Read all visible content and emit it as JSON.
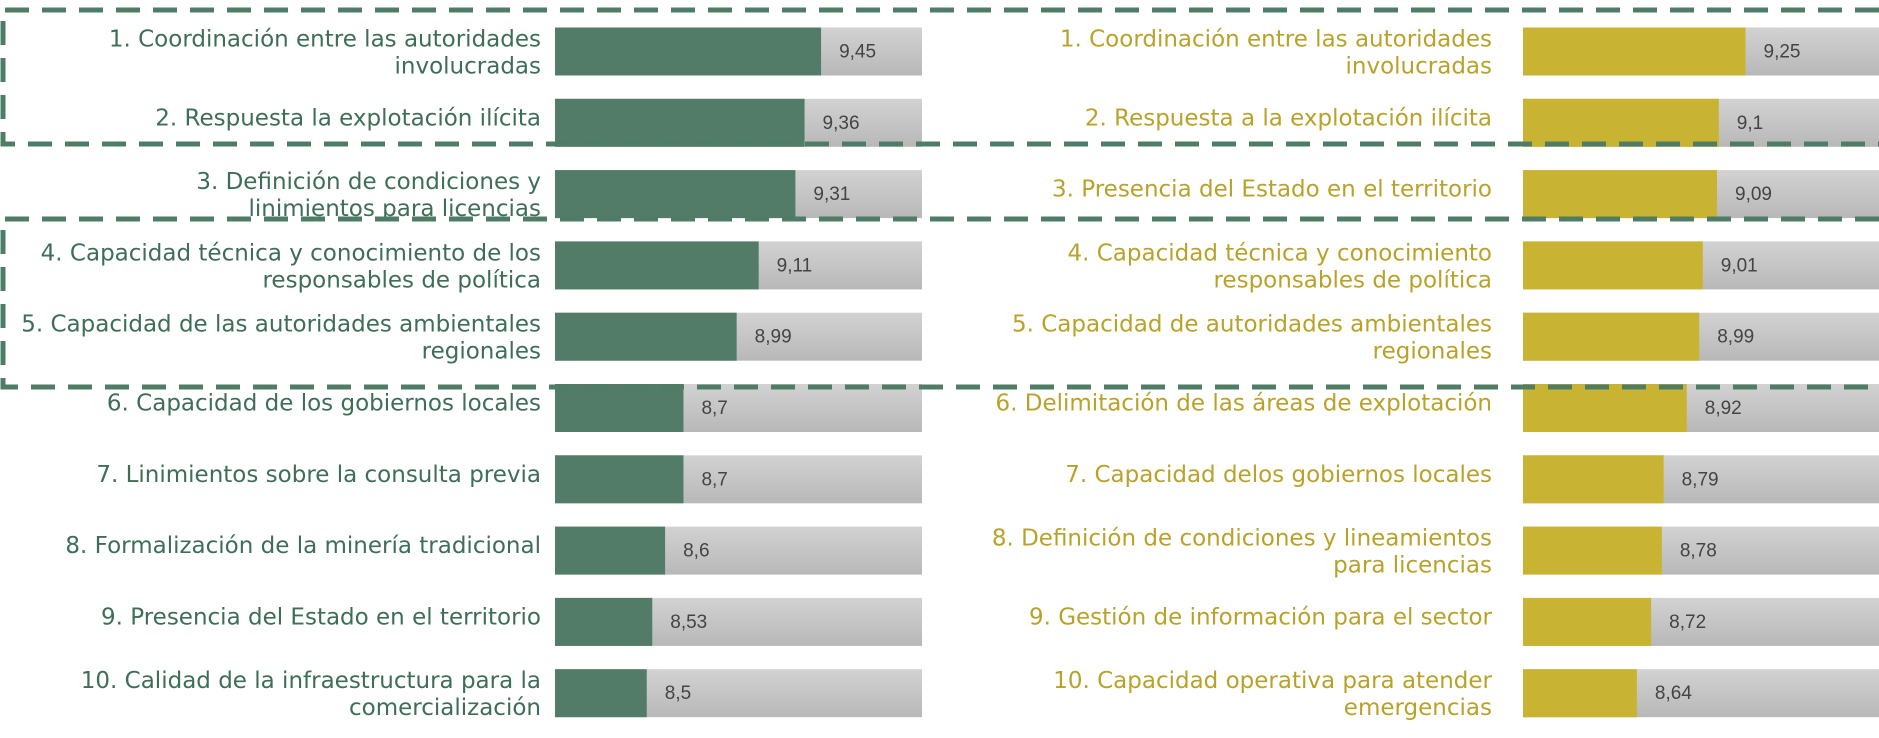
{
  "chart_data": [
    {
      "type": "barh",
      "categories": [
        [
          "1. Coordinación entre las autoridades",
          "involucradas"
        ],
        [
          "2. Respuesta la explotación ilícita"
        ],
        [
          "3. Definición de condiciones y",
          "linimientos para licencias"
        ],
        [
          "4. Capacidad técnica y conocimiento de los",
          "responsables de política"
        ],
        [
          "5. Capacidad de las autoridades ambientales",
          "regionales"
        ],
        [
          "6. Capacidad de los gobiernos locales"
        ],
        [
          "7. Linimientos sobre la consulta previa"
        ],
        [
          "8. Formalización de la minería tradicional"
        ],
        [
          "9. Presencia del Estado en el territorio"
        ],
        [
          "10. Calidad de la infraestructura para la",
          "comercialización"
        ]
      ],
      "values": [
        9.45,
        9.36,
        9.31,
        9.11,
        8.99,
        8.7,
        8.7,
        8.6,
        8.53,
        8.5
      ],
      "value_labels": [
        "9,45",
        "9,36",
        "9,31",
        "9,11",
        "8,99",
        "8,7",
        "8,7",
        "8,6",
        "8,53",
        "8,5"
      ],
      "color": "#527c68",
      "label_color": "#3e6e58",
      "xlim": [
        8,
        10
      ]
    },
    {
      "type": "barh",
      "categories": [
        [
          "1. Coordinación entre las autoridades",
          "involucradas"
        ],
        [
          "2. Respuesta a la explotación ilícita"
        ],
        [
          "3. Presencia del Estado en el territorio"
        ],
        [
          "4. Capacidad técnica y conocimiento",
          "responsables de política"
        ],
        [
          "5. Capacidad de autoridades ambientales",
          "regionales"
        ],
        [
          "6. Delimitación de las áreas de explotación"
        ],
        [
          "7. Capacidad delos gobiernos locales"
        ],
        [
          "8. Definición de condiciones y lineamientos",
          "para licencias"
        ],
        [
          "9. Gestión de información para el sector"
        ],
        [
          "10. Capacidad operativa para atender",
          "emergencias"
        ]
      ],
      "values": [
        9.25,
        9.1,
        9.09,
        9.01,
        8.99,
        8.92,
        8.79,
        8.78,
        8.72,
        8.64
      ],
      "value_labels": [
        "9,25",
        "9,1",
        "9,09",
        "9,01",
        "8,99",
        "8,92",
        "8,79",
        "8,78",
        "8,72",
        "8,64"
      ],
      "color": "#c8b432",
      "label_color": "#b9a22a",
      "xlim": [
        8,
        10
      ]
    }
  ]
}
